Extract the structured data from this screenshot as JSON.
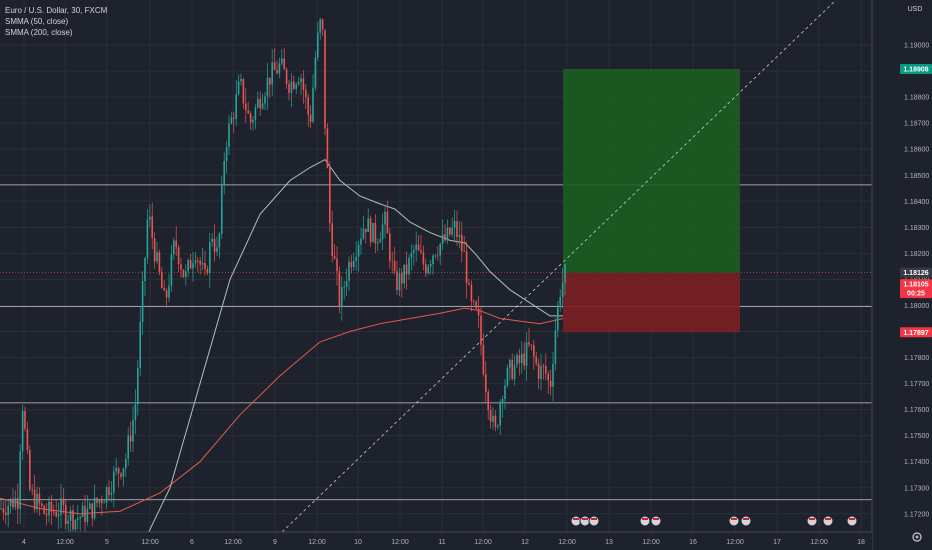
{
  "legend": {
    "symbol": "Euro / U.S. Dollar, 30, FXCM",
    "ma1": "SMMA (50, close)",
    "ma2": "SMMA (200, close)"
  },
  "currency": "USD",
  "colors": {
    "bg": "#1e222d",
    "up": "#26a69a",
    "down": "#ef5350",
    "sma50": "#a9c5b9",
    "sma200": "#e05b4a",
    "target": "#1b5e20",
    "stop": "#7b1f23",
    "target_badge": "#089981",
    "stop_badge": "#f23645",
    "price_badge": "#363a45"
  },
  "chart_data": {
    "type": "candlestick",
    "symbol": "EURUSD",
    "timeframe": "30",
    "x_tick_labels": [
      "4",
      "12:00",
      "5",
      "12:00",
      "6",
      "12:00",
      "9",
      "12:00",
      "10",
      "12:00",
      "11",
      "12:00",
      "12",
      "12:00",
      "13",
      "12:00",
      "16",
      "12:00",
      "17",
      "12:00",
      "18"
    ],
    "y_tick_labels": [
      "1.19000",
      "1.18900",
      "1.18800",
      "1.18700",
      "1.18600",
      "1.18500",
      "1.18400",
      "1.18300",
      "1.18200",
      "1.18100",
      "1.18000",
      "1.17900",
      "1.17800",
      "1.17700",
      "1.17600",
      "1.17500",
      "1.17400",
      "1.17300",
      "1.17200"
    ],
    "ylim": [
      1.1718,
      1.1915
    ],
    "price_labels": {
      "target": "1.18908",
      "current": "1.18126",
      "last": "1.18105",
      "countdown": "00:25",
      "stop": "1.17897"
    },
    "position": {
      "entry": 1.18126,
      "target": 1.18908,
      "stop": 1.17897
    },
    "horizontal_levels": [
      1.18463,
      1.17996,
      1.17626,
      1.17254
    ],
    "close_path": [
      [
        0,
        1.1722
      ],
      [
        18,
        1.1726
      ],
      [
        22,
        1.1765
      ],
      [
        30,
        1.1728
      ],
      [
        45,
        1.172
      ],
      [
        60,
        1.1722
      ],
      [
        75,
        1.1718
      ],
      [
        90,
        1.1721
      ],
      [
        105,
        1.1728
      ],
      [
        115,
        1.1735
      ],
      [
        125,
        1.174
      ],
      [
        135,
        1.176
      ],
      [
        140,
        1.179
      ],
      [
        148,
        1.1836
      ],
      [
        155,
        1.182
      ],
      [
        165,
        1.18
      ],
      [
        175,
        1.1825
      ],
      [
        185,
        1.181
      ],
      [
        195,
        1.1822
      ],
      [
        205,
        1.181
      ],
      [
        212,
        1.1828
      ],
      [
        218,
        1.1818
      ],
      [
        225,
        1.1862
      ],
      [
        232,
        1.1872
      ],
      [
        240,
        1.1885
      ],
      [
        250,
        1.187
      ],
      [
        260,
        1.188
      ],
      [
        270,
        1.1888
      ],
      [
        280,
        1.1892
      ],
      [
        290,
        1.1885
      ],
      [
        300,
        1.189
      ],
      [
        310,
        1.187
      ],
      [
        316,
        1.1898
      ],
      [
        322,
        1.1912
      ],
      [
        325,
        1.187
      ],
      [
        330,
        1.183
      ],
      [
        335,
        1.1815
      ],
      [
        340,
        1.18
      ],
      [
        348,
        1.1815
      ],
      [
        355,
        1.1822
      ],
      [
        365,
        1.1832
      ],
      [
        375,
        1.1826
      ],
      [
        385,
        1.1832
      ],
      [
        395,
        1.1808
      ],
      [
        405,
        1.1812
      ],
      [
        415,
        1.1822
      ],
      [
        425,
        1.1815
      ],
      [
        435,
        1.1822
      ],
      [
        445,
        1.1825
      ],
      [
        455,
        1.183
      ],
      [
        465,
        1.1818
      ],
      [
        470,
        1.18
      ],
      [
        478,
        1.1795
      ],
      [
        485,
        1.1772
      ],
      [
        490,
        1.176
      ],
      [
        495,
        1.175
      ],
      [
        502,
        1.1768
      ],
      [
        510,
        1.1775
      ],
      [
        520,
        1.1778
      ],
      [
        530,
        1.1784
      ],
      [
        538,
        1.1775
      ],
      [
        545,
        1.1775
      ],
      [
        550,
        1.1768
      ],
      [
        555,
        1.179
      ],
      [
        560,
        1.1806
      ],
      [
        565,
        1.1812
      ]
    ],
    "smma50_path": [
      [
        140,
        1.1706
      ],
      [
        170,
        1.173
      ],
      [
        200,
        1.177
      ],
      [
        230,
        1.181
      ],
      [
        260,
        1.1835
      ],
      [
        290,
        1.1848
      ],
      [
        310,
        1.1853
      ],
      [
        325,
        1.1856
      ],
      [
        340,
        1.1848
      ],
      [
        360,
        1.1842
      ],
      [
        380,
        1.1839
      ],
      [
        395,
        1.1837
      ],
      [
        410,
        1.1832
      ],
      [
        430,
        1.1828
      ],
      [
        450,
        1.1825
      ],
      [
        465,
        1.1824
      ],
      [
        475,
        1.182
      ],
      [
        490,
        1.1813
      ],
      [
        510,
        1.1806
      ],
      [
        530,
        1.1801
      ],
      [
        550,
        1.1796
      ],
      [
        563,
        1.1796
      ]
    ],
    "smma200_path": [
      [
        0,
        1.1726
      ],
      [
        40,
        1.1722
      ],
      [
        80,
        1.172
      ],
      [
        120,
        1.1721
      ],
      [
        160,
        1.1728
      ],
      [
        200,
        1.174
      ],
      [
        240,
        1.1758
      ],
      [
        280,
        1.1773
      ],
      [
        320,
        1.1786
      ],
      [
        350,
        1.179
      ],
      [
        380,
        1.1793
      ],
      [
        410,
        1.1795
      ],
      [
        440,
        1.1797
      ],
      [
        465,
        1.1799
      ],
      [
        480,
        1.1798
      ],
      [
        500,
        1.1795
      ],
      [
        520,
        1.1794
      ],
      [
        540,
        1.1793
      ],
      [
        563,
        1.1795
      ]
    ]
  }
}
